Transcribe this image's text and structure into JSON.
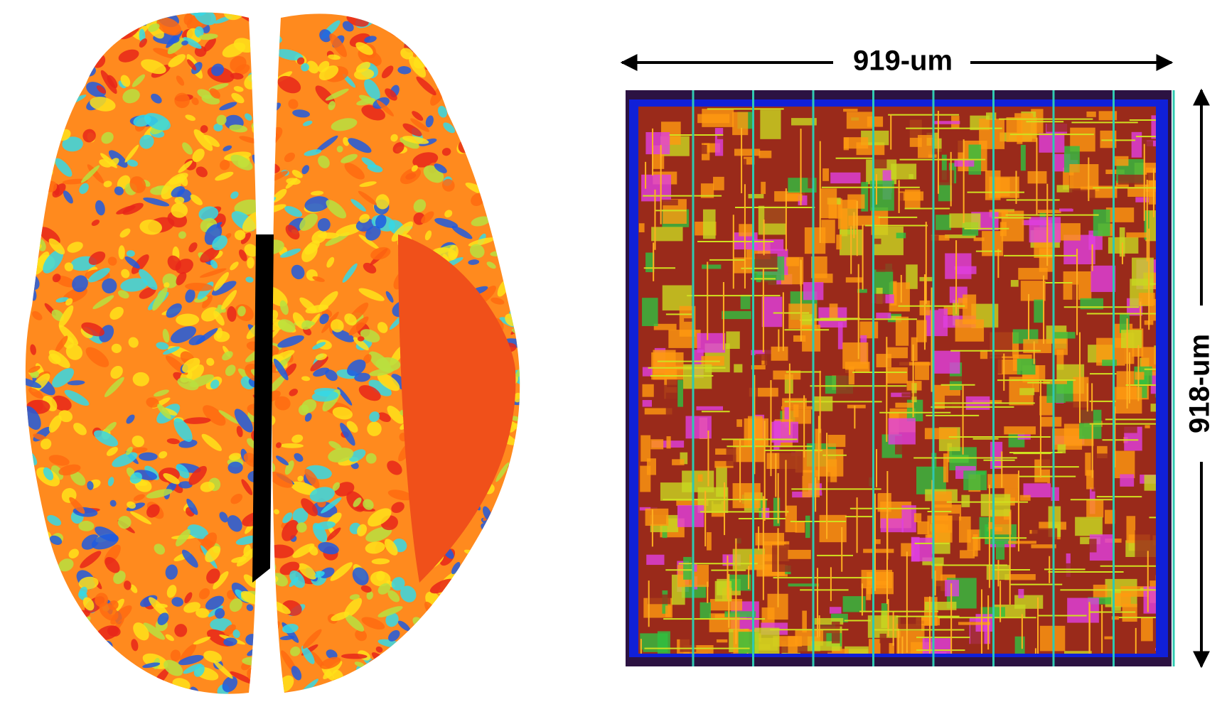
{
  "labels": {
    "width": "919-um",
    "height": "918-um"
  }
}
